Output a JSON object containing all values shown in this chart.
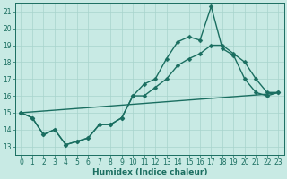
{
  "xlabel": "Humidex (Indice chaleur)",
  "xlim": [
    -0.5,
    23.5
  ],
  "ylim": [
    12.5,
    21.5
  ],
  "yticks": [
    13,
    14,
    15,
    16,
    17,
    18,
    19,
    20,
    21
  ],
  "xticks": [
    0,
    1,
    2,
    3,
    4,
    5,
    6,
    7,
    8,
    9,
    10,
    11,
    12,
    13,
    14,
    15,
    16,
    17,
    18,
    19,
    20,
    21,
    22,
    23
  ],
  "background_color": "#c8eae4",
  "grid_color": "#a8d4cc",
  "line_color": "#1a6e60",
  "line1_y": [
    15.0,
    14.7,
    13.7,
    14.0,
    13.1,
    13.3,
    13.5,
    14.3,
    14.3,
    14.7,
    16.0,
    16.7,
    17.0,
    18.2,
    19.2,
    19.5,
    19.3,
    21.3,
    18.8,
    18.4,
    17.0,
    16.2,
    16.0,
    16.2
  ],
  "line2_y": [
    15.0,
    14.7,
    13.7,
    14.0,
    13.1,
    13.3,
    13.5,
    14.3,
    14.3,
    14.7,
    16.0,
    16.0,
    16.5,
    17.0,
    17.8,
    18.2,
    18.5,
    19.0,
    19.0,
    18.5,
    18.0,
    17.0,
    16.2,
    16.2
  ],
  "line3_y": [
    15.0,
    15.05,
    15.1,
    15.15,
    15.2,
    15.25,
    15.3,
    15.35,
    15.4,
    15.45,
    15.5,
    15.55,
    15.6,
    15.65,
    15.7,
    15.75,
    15.8,
    15.85,
    15.9,
    15.95,
    16.0,
    16.05,
    16.1,
    16.2
  ],
  "marker_size": 2.5,
  "linewidth": 1.0,
  "tick_fontsize": 5.5,
  "xlabel_fontsize": 6.5
}
